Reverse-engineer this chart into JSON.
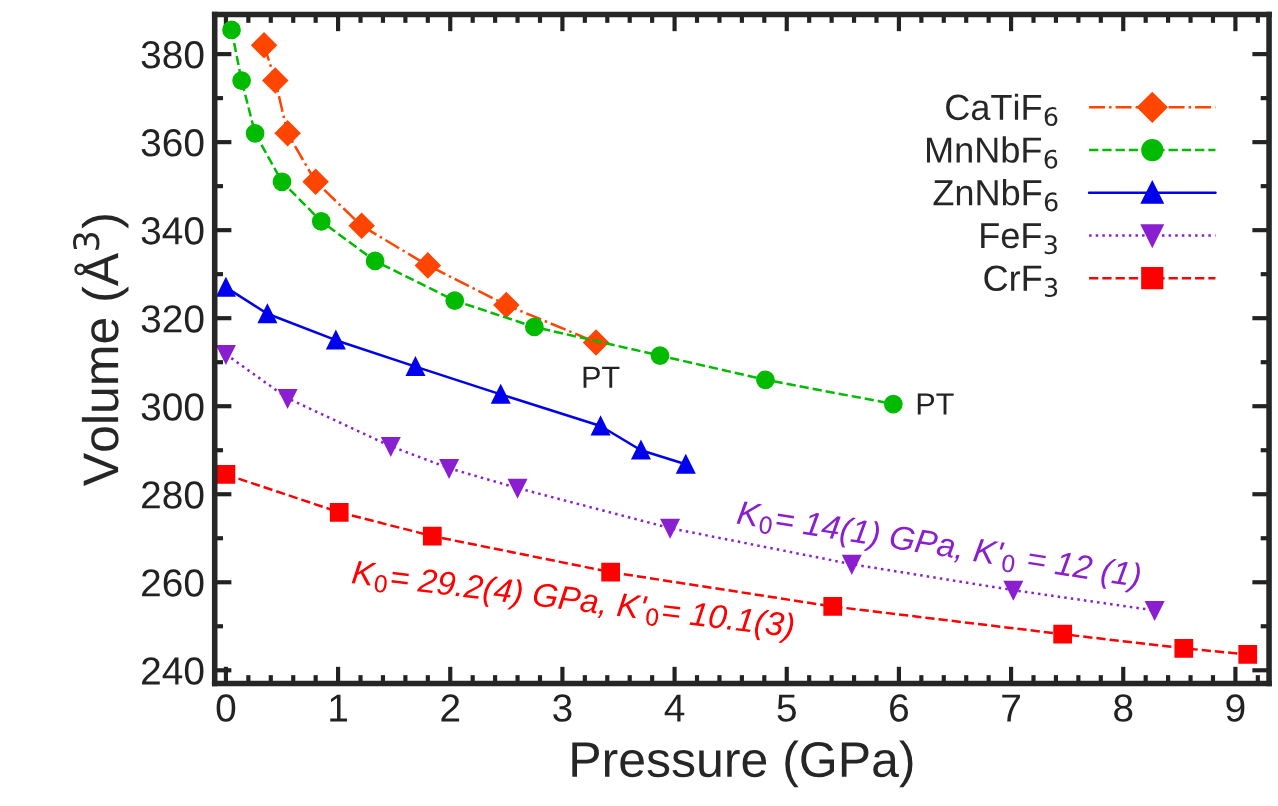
{
  "chart_data": {
    "type": "line",
    "xlabel": "Pressure (GPa)",
    "ylabel": "Volume (Å$^{3}$)",
    "xlim": [
      -0.1,
      9.3
    ],
    "ylim": [
      237,
      389
    ],
    "xticks": [
      0,
      1,
      2,
      3,
      4,
      5,
      6,
      7,
      8,
      9
    ],
    "yticks": [
      240,
      260,
      280,
      300,
      320,
      340,
      360,
      380
    ],
    "grid": false,
    "legend": "top right",
    "series": [
      {
        "name": "CaTiF$_{6}$",
        "color": "#ff4500",
        "marker": "diamond",
        "line_style": "dashdot",
        "x": [
          0.34,
          0.44,
          0.55,
          0.8,
          1.21,
          1.8,
          2.5,
          3.3
        ],
        "values": [
          382,
          374,
          362,
          351,
          341,
          332,
          323,
          314.5
        ]
      },
      {
        "name": "MnNbF$_{6}$",
        "color": "#00bb00",
        "marker": "circle",
        "line_style": "dashed",
        "x": [
          0.05,
          0.14,
          0.26,
          0.5,
          0.85,
          1.33,
          2.04,
          2.75,
          3.87,
          4.81,
          5.95
        ],
        "values": [
          385.5,
          374,
          362,
          351,
          342,
          333,
          324,
          318,
          311.5,
          306,
          300.5
        ]
      },
      {
        "name": "ZnNbF$_{6}$",
        "color": "#0000ee",
        "marker": "triangle",
        "line_style": "solid",
        "x": [
          0.0,
          0.37,
          0.98,
          1.69,
          2.45,
          3.34,
          3.7,
          4.1
        ],
        "values": [
          327,
          321,
          315,
          309,
          302.7,
          295.5,
          290,
          286.8
        ]
      },
      {
        "name": "FeF$_{3}$",
        "color": "#8a1fd0",
        "marker": "triangle_down",
        "line_style": "dotted",
        "x": [
          0.0,
          0.55,
          1.47,
          1.99,
          2.6,
          3.96,
          5.58,
          7.02,
          8.28
        ],
        "values": [
          311.8,
          301.8,
          290.9,
          285.9,
          281.4,
          272.3,
          264.1,
          258.2,
          253.6
        ]
      },
      {
        "name": "CrF$_{3}$",
        "color": "#ff0000",
        "marker": "square",
        "line_style": "dashed",
        "x": [
          0.0,
          1.01,
          1.84,
          3.43,
          5.41,
          7.46,
          8.54,
          9.11
        ],
        "values": [
          284.5,
          275.9,
          270.5,
          262.3,
          254.5,
          248.2,
          245.0,
          243.6
        ]
      }
    ],
    "annotations": [
      "PT",
      "PT",
      "K$_{0}$= 14(1) GPa, K'$_{0}$ = 12 (1)",
      "K$_{0}$= 29.2(4) GPa, K'$_{0}$= 10.1(3)"
    ]
  }
}
